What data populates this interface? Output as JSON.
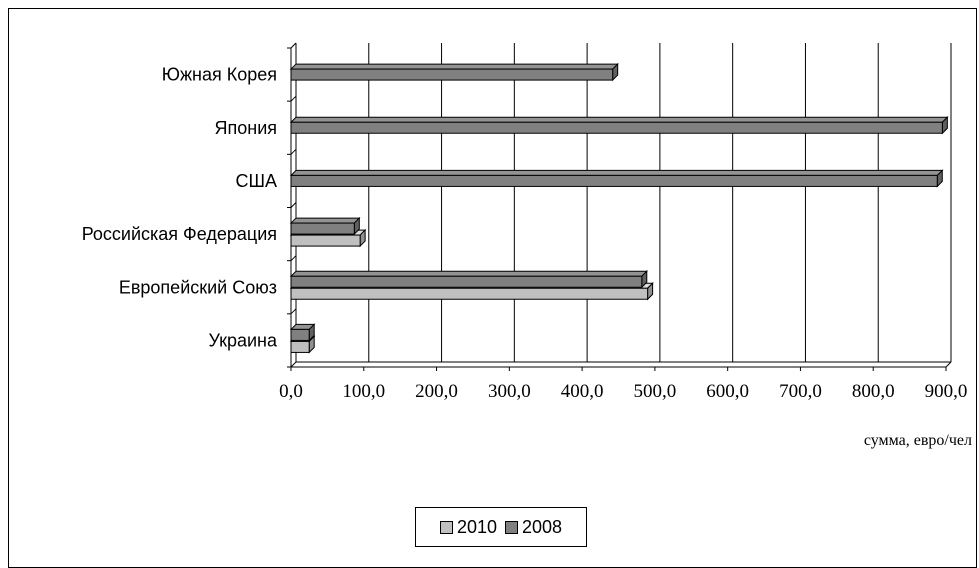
{
  "chart_data": {
    "type": "bar",
    "orientation": "horizontal",
    "categories": [
      "Украина",
      "Европейский Союз",
      "Российская Федерация",
      "США",
      "Япония",
      "Южная Корея"
    ],
    "series": [
      {
        "name": "2010",
        "color": "#c0c0c0",
        "values": [
          25,
          490,
          95,
          null,
          null,
          null
        ]
      },
      {
        "name": "2008",
        "color": "#808080",
        "values": [
          25,
          482,
          87,
          888,
          895,
          442
        ]
      }
    ],
    "x_ticks": [
      "0,0",
      "100,0",
      "200,0",
      "300,0",
      "400,0",
      "500,0",
      "600,0",
      "700,0",
      "800,0",
      "900,0"
    ],
    "xlim": [
      0,
      900
    ],
    "xlabel": "сумма, евро/чел",
    "ylabel": "",
    "title": "",
    "grid": "vertical",
    "legend_position": "bottom"
  }
}
